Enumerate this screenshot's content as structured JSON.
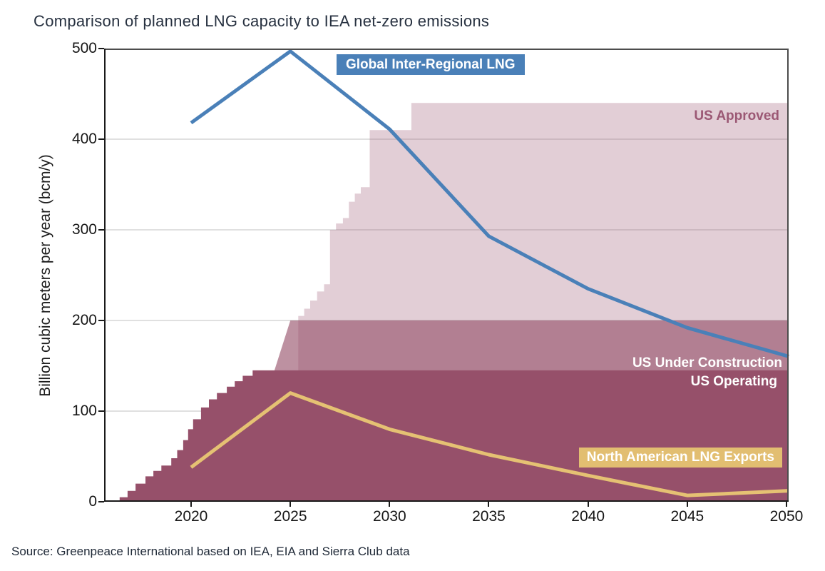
{
  "title": "Comparison of planned LNG capacity to IEA net-zero emissions",
  "source": "Source: Greenpeace International based on IEA, EIA and Sierra Club data",
  "annotations": {
    "global_lng": "Global Inter-Regional LNG",
    "us_approved": "US Approved",
    "us_under_construction": "US Under Construction",
    "us_operating": "US Operating",
    "na_exports": "North American LNG Exports"
  },
  "colors": {
    "line_blue": "#4A80B8",
    "line_gold": "#E2BE71",
    "area_operating": "#96506A",
    "area_under_construction": "rgba(150,80,106,0.63)",
    "area_approved": "rgba(150,80,106,0.28)",
    "approved_text": "#9B5874",
    "grid": "#cdcdcd"
  },
  "chart_data": {
    "type": "area",
    "title": "Comparison of planned LNG capacity to IEA net-zero emissions",
    "xlabel": "",
    "ylabel": "Billion cubic meters per year (bcm/y)",
    "x_range": [
      2015.6,
      2050
    ],
    "ylim": [
      0,
      500
    ],
    "x_ticks": [
      2020,
      2025,
      2030,
      2035,
      2040,
      2045,
      2050
    ],
    "y_ticks": [
      0,
      100,
      200,
      300,
      400,
      500
    ],
    "grid": "horizontal",
    "grid_color": "#cdcdcd",
    "series": [
      {
        "name": "US Approved",
        "type": "area",
        "step": true,
        "color": "rgba(150,80,106,0.28)",
        "points": [
          [
            2025.4,
            205
          ],
          [
            2025.7,
            213
          ],
          [
            2026.0,
            222
          ],
          [
            2026.35,
            232
          ],
          [
            2026.7,
            240
          ],
          [
            2027.0,
            300
          ],
          [
            2027.3,
            307
          ],
          [
            2027.65,
            313
          ],
          [
            2027.95,
            331
          ],
          [
            2028.25,
            340
          ],
          [
            2028.55,
            347
          ],
          [
            2029.0,
            410
          ],
          [
            2031.1,
            440
          ],
          [
            2050,
            440
          ]
        ]
      },
      {
        "name": "US Under Construction",
        "type": "area",
        "step": false,
        "color": "rgba(150,80,106,0.63)",
        "points": [
          [
            2024.2,
            145
          ],
          [
            2025.0,
            200
          ],
          [
            2050,
            200
          ]
        ]
      },
      {
        "name": "US Operating",
        "type": "area",
        "step": true,
        "color": "#96506A",
        "points": [
          [
            2016.05,
            0
          ],
          [
            2016.4,
            5
          ],
          [
            2016.8,
            12
          ],
          [
            2017.2,
            20
          ],
          [
            2017.7,
            28
          ],
          [
            2018.1,
            34
          ],
          [
            2018.5,
            40
          ],
          [
            2019.0,
            48
          ],
          [
            2019.3,
            57
          ],
          [
            2019.6,
            68
          ],
          [
            2019.85,
            80
          ],
          [
            2020.1,
            91
          ],
          [
            2020.5,
            104
          ],
          [
            2020.9,
            113
          ],
          [
            2021.3,
            120
          ],
          [
            2021.8,
            127
          ],
          [
            2022.2,
            133
          ],
          [
            2022.6,
            139
          ],
          [
            2023.1,
            145
          ],
          [
            2050,
            145
          ]
        ]
      },
      {
        "name": "Global Inter-Regional LNG",
        "type": "line",
        "color": "#4A80B8",
        "width": 5,
        "points": [
          [
            2020,
            418
          ],
          [
            2025,
            497
          ],
          [
            2030,
            411
          ],
          [
            2035,
            293
          ],
          [
            2040,
            235
          ],
          [
            2045,
            192
          ],
          [
            2050,
            161
          ]
        ]
      },
      {
        "name": "North American LNG Exports",
        "type": "line",
        "color": "#E5C173",
        "width": 5,
        "points": [
          [
            2020,
            38
          ],
          [
            2025,
            120
          ],
          [
            2030,
            80
          ],
          [
            2035,
            52
          ],
          [
            2040,
            29
          ],
          [
            2045,
            7
          ],
          [
            2050,
            12
          ]
        ]
      }
    ]
  }
}
